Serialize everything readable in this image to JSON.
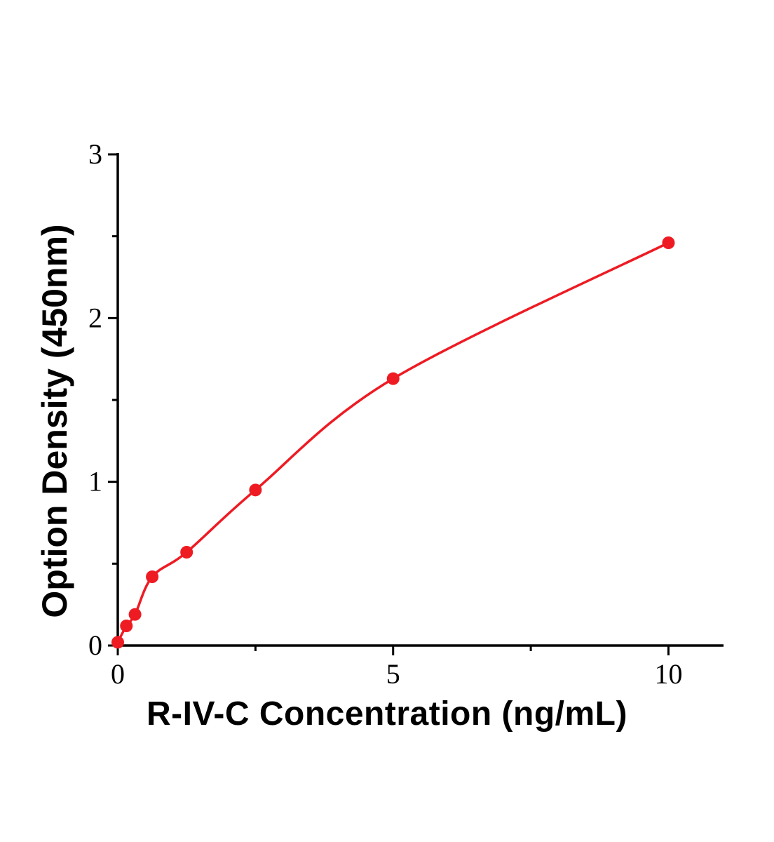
{
  "chart_data": {
    "type": "scatter",
    "title": "",
    "xlabel": "R-IV-C Concentration (ng/mL)",
    "ylabel": "Option Density (450nm)",
    "xlim": [
      0,
      11
    ],
    "ylim": [
      0,
      3
    ],
    "x_major_ticks": [
      0,
      5,
      10
    ],
    "x_minor_ticks": [
      2.5,
      7.5
    ],
    "y_major_ticks": [
      0,
      1,
      2,
      3
    ],
    "y_minor_ticks": [
      0.5,
      1.5,
      2.5
    ],
    "x": [
      0,
      0.156,
      0.313,
      0.625,
      1.25,
      2.5,
      5,
      10
    ],
    "y": [
      0.02,
      0.12,
      0.19,
      0.42,
      0.57,
      0.95,
      1.63,
      2.46
    ],
    "line_color": "#ee1b23",
    "marker_color": "#ee1b23",
    "axis_color": "#000000",
    "grid": false,
    "legend": null
  }
}
